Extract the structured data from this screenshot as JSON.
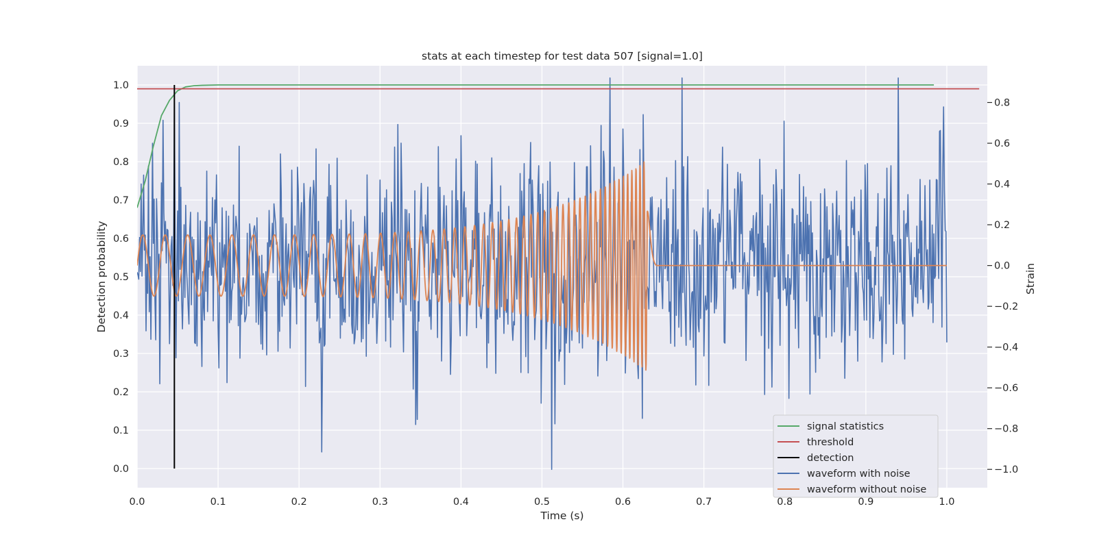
{
  "chart_data": {
    "type": "line",
    "title": "stats at each timestep for test data 507 [signal=1.0]",
    "xlabel": "Time (s)",
    "ylabel_left": "Detection probability",
    "ylabel_right": "Strain",
    "xlim": [
      0.0,
      1.05
    ],
    "ylim_left": [
      -0.05,
      1.05
    ],
    "ylim_right": [
      -1.09,
      0.98
    ],
    "xticks": [
      "0.0",
      "0.1",
      "0.2",
      "0.3",
      "0.4",
      "0.5",
      "0.6",
      "0.7",
      "0.8",
      "0.9",
      "1.0"
    ],
    "yticks_left": [
      "0.0",
      "0.1",
      "0.2",
      "0.3",
      "0.4",
      "0.5",
      "0.6",
      "0.7",
      "0.8",
      "0.9",
      "1.0"
    ],
    "yticks_right": [
      "−1.0",
      "−0.8",
      "−0.6",
      "−0.4",
      "−0.2",
      "0.0",
      "0.2",
      "0.4",
      "0.6",
      "0.8"
    ],
    "grid": true,
    "legend_position": "lower-right",
    "series": [
      {
        "name": "signal statistics",
        "axis": "left",
        "color": "#55A868",
        "x": [
          0.0,
          0.01,
          0.02,
          0.03,
          0.04,
          0.05,
          0.06,
          0.07,
          0.08,
          0.1,
          0.2,
          0.4,
          0.6,
          0.8,
          0.984
        ],
        "y": [
          0.68,
          0.75,
          0.84,
          0.92,
          0.96,
          0.985,
          0.995,
          0.998,
          0.999,
          1.0,
          1.0,
          1.0,
          1.0,
          1.0,
          1.0
        ]
      },
      {
        "name": "threshold",
        "axis": "left",
        "color": "#C44E52",
        "x": [
          0.0,
          1.04
        ],
        "y": [
          0.99,
          0.99
        ]
      },
      {
        "name": "detection",
        "axis": "left",
        "color": "#000000",
        "x": [
          0.046,
          0.046
        ],
        "y": [
          0.0,
          1.0
        ]
      },
      {
        "name": "waveform with noise",
        "axis": "right",
        "color": "#4C72B0",
        "generator": "noise",
        "x_range": [
          0.0,
          1.0
        ],
        "points": 1000,
        "amplitude_std": 0.26,
        "peaks": [
          [
            0.005,
            0.4
          ],
          [
            0.019,
            0.6
          ],
          [
            0.028,
            -0.58
          ],
          [
            0.046,
            0.8
          ],
          [
            0.052,
            0.8
          ],
          [
            0.512,
            -1.0
          ],
          [
            0.94,
            0.92
          ],
          [
            0.6,
            0.67
          ],
          [
            0.344,
            -0.78
          ]
        ]
      },
      {
        "name": "waveform without noise",
        "axis": "right",
        "color": "#DD8452",
        "generator": "chirp",
        "x_range": [
          0.0,
          1.0
        ],
        "merger_time": 0.63,
        "amplitude_start": 0.15,
        "amplitude_peak": 0.52,
        "freq_start": 36,
        "freq_end": 210
      }
    ]
  }
}
